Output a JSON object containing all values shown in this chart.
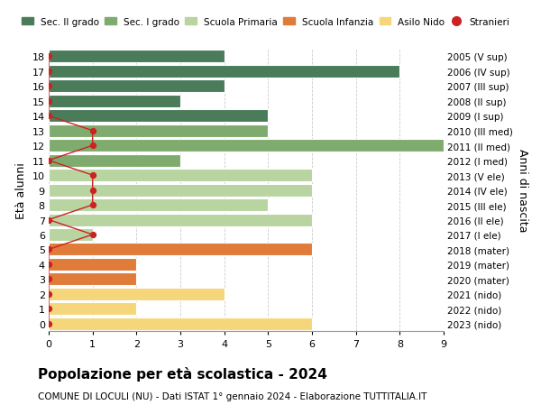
{
  "ages": [
    18,
    17,
    16,
    15,
    14,
    13,
    12,
    11,
    10,
    9,
    8,
    7,
    6,
    5,
    4,
    3,
    2,
    1,
    0
  ],
  "years": [
    "2005 (V sup)",
    "2006 (IV sup)",
    "2007 (III sup)",
    "2008 (II sup)",
    "2009 (I sup)",
    "2010 (III med)",
    "2011 (II med)",
    "2012 (I med)",
    "2013 (V ele)",
    "2014 (IV ele)",
    "2015 (III ele)",
    "2016 (II ele)",
    "2017 (I ele)",
    "2018 (mater)",
    "2019 (mater)",
    "2020 (mater)",
    "2021 (nido)",
    "2022 (nido)",
    "2023 (nido)"
  ],
  "bar_values": [
    4,
    8,
    4,
    3,
    5,
    5,
    9,
    3,
    6,
    6,
    5,
    6,
    1,
    6,
    2,
    2,
    4,
    2,
    6
  ],
  "bar_colors": [
    "#4a7c59",
    "#4a7c59",
    "#4a7c59",
    "#4a7c59",
    "#4a7c59",
    "#7fac6e",
    "#7fac6e",
    "#7fac6e",
    "#b8d4a0",
    "#b8d4a0",
    "#b8d4a0",
    "#b8d4a0",
    "#b8d4a0",
    "#e07b39",
    "#e07b39",
    "#e07b39",
    "#f5d67a",
    "#f5d67a",
    "#f5d67a"
  ],
  "stranieri_x": [
    0,
    0,
    0,
    0,
    0,
    1,
    1,
    0,
    1,
    1,
    1,
    0,
    1,
    0,
    0,
    0,
    0,
    0,
    0
  ],
  "legend_labels": [
    "Sec. II grado",
    "Sec. I grado",
    "Scuola Primaria",
    "Scuola Infanzia",
    "Asilo Nido",
    "Stranieri"
  ],
  "legend_colors": [
    "#4a7c59",
    "#7fac6e",
    "#b8d4a0",
    "#e07b39",
    "#f5d67a",
    "#cc2222"
  ],
  "title": "Popolazione per età scolastica - 2024",
  "subtitle": "COMUNE DI LOCULI (NU) - Dati ISTAT 1° gennaio 2024 - Elaborazione TUTTITALIA.IT",
  "ylabel_left": "Età alunni",
  "ylabel_right": "Anni di nascita",
  "xlim": [
    0,
    9
  ],
  "xticks": [
    0,
    1,
    2,
    3,
    4,
    5,
    6,
    7,
    8,
    9
  ],
  "background_color": "#ffffff",
  "bar_height": 0.85,
  "grid_color": "#cccccc",
  "stranieri_color": "#cc2222"
}
